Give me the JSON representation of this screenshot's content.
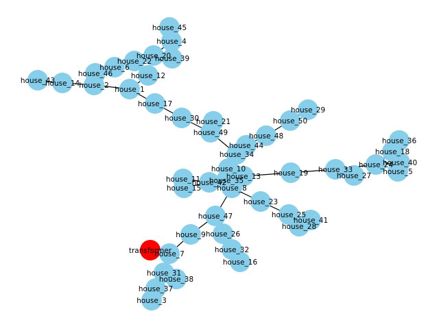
{
  "colors": {
    "node": "#87CEEB",
    "transformer": "#FF0000",
    "edge": "#000000",
    "background": "#FFFFFF"
  },
  "nodes": [
    {
      "id": "house_45",
      "label": "house_45"
    },
    {
      "id": "house_4",
      "label": "house_4"
    },
    {
      "id": "house_20",
      "label": "house_20"
    },
    {
      "id": "house_39",
      "label": "house_39"
    },
    {
      "id": "house_22",
      "label": "house_22"
    },
    {
      "id": "house_6",
      "label": "house_6"
    },
    {
      "id": "house_46",
      "label": "house_46"
    },
    {
      "id": "house_12",
      "label": "house_12"
    },
    {
      "id": "house_43",
      "label": "house_43"
    },
    {
      "id": "house_14",
      "label": "house_14"
    },
    {
      "id": "house_2",
      "label": "house_2"
    },
    {
      "id": "house_1",
      "label": "house_1"
    },
    {
      "id": "house_17",
      "label": "house_17"
    },
    {
      "id": "house_30",
      "label": "house_30"
    },
    {
      "id": "house_21",
      "label": "house_21"
    },
    {
      "id": "house_49",
      "label": "house_49"
    },
    {
      "id": "house_29",
      "label": "house_29"
    },
    {
      "id": "house_50",
      "label": "house_50"
    },
    {
      "id": "house_48",
      "label": "house_48"
    },
    {
      "id": "house_44",
      "label": "house_44"
    },
    {
      "id": "house_34",
      "label": "house_34"
    },
    {
      "id": "house_36",
      "label": "house_36"
    },
    {
      "id": "house_18",
      "label": "house_18"
    },
    {
      "id": "house_24",
      "label": "house_24"
    },
    {
      "id": "house_40",
      "label": "house_40"
    },
    {
      "id": "house_5",
      "label": "house_5"
    },
    {
      "id": "house_33",
      "label": "house_33"
    },
    {
      "id": "house_27",
      "label": "house_27"
    },
    {
      "id": "house_10",
      "label": "house_10"
    },
    {
      "id": "house_13",
      "label": "house_13"
    },
    {
      "id": "house_19",
      "label": "house_19"
    },
    {
      "id": "house_11",
      "label": "house_11"
    },
    {
      "id": "house_42",
      "label": "house_42"
    },
    {
      "id": "house_35",
      "label": "house_35"
    },
    {
      "id": "house_15",
      "label": "house_15"
    },
    {
      "id": "house_8",
      "label": "house_8"
    },
    {
      "id": "house_23",
      "label": "house_23"
    },
    {
      "id": "house_25",
      "label": "house_25"
    },
    {
      "id": "house_41",
      "label": "house_41"
    },
    {
      "id": "house_28",
      "label": "house_28"
    },
    {
      "id": "house_47",
      "label": "house_47"
    },
    {
      "id": "house_9",
      "label": "house_9"
    },
    {
      "id": "house_26",
      "label": "house_26"
    },
    {
      "id": "transformer",
      "label": "transformer",
      "type": "transformer"
    },
    {
      "id": "house_7",
      "label": "house_7"
    },
    {
      "id": "house_32",
      "label": "house_32"
    },
    {
      "id": "house_16",
      "label": "house_16"
    },
    {
      "id": "house_31",
      "label": "house_31"
    },
    {
      "id": "house_38",
      "label": "house_38"
    },
    {
      "id": "house_37",
      "label": "house_37"
    },
    {
      "id": "house_3",
      "label": "house_3"
    }
  ],
  "edges": [
    [
      "house_45",
      "house_4"
    ],
    [
      "house_4",
      "house_20"
    ],
    [
      "house_20",
      "house_39"
    ],
    [
      "house_20",
      "house_22"
    ],
    [
      "house_22",
      "house_6"
    ],
    [
      "house_6",
      "house_46"
    ],
    [
      "house_22",
      "house_12"
    ],
    [
      "house_12",
      "house_1"
    ],
    [
      "house_43",
      "house_14"
    ],
    [
      "house_14",
      "house_2"
    ],
    [
      "house_46",
      "house_2"
    ],
    [
      "house_2",
      "house_1"
    ],
    [
      "house_1",
      "house_17"
    ],
    [
      "house_17",
      "house_30"
    ],
    [
      "house_30",
      "house_49"
    ],
    [
      "house_21",
      "house_49"
    ],
    [
      "house_49",
      "house_34"
    ],
    [
      "house_29",
      "house_50"
    ],
    [
      "house_50",
      "house_48"
    ],
    [
      "house_48",
      "house_44"
    ],
    [
      "house_44",
      "house_34"
    ],
    [
      "house_34",
      "house_10"
    ],
    [
      "house_10",
      "house_13"
    ],
    [
      "house_13",
      "house_19"
    ],
    [
      "house_19",
      "house_33"
    ],
    [
      "house_33",
      "house_27"
    ],
    [
      "house_33",
      "house_24"
    ],
    [
      "house_24",
      "house_18"
    ],
    [
      "house_18",
      "house_36"
    ],
    [
      "house_24",
      "house_40"
    ],
    [
      "house_40",
      "house_5"
    ],
    [
      "house_11",
      "house_42"
    ],
    [
      "house_15",
      "house_42"
    ],
    [
      "house_42",
      "house_35"
    ],
    [
      "house_35",
      "house_13"
    ],
    [
      "house_35",
      "house_8"
    ],
    [
      "house_8",
      "house_23"
    ],
    [
      "house_23",
      "house_25"
    ],
    [
      "house_25",
      "house_41"
    ],
    [
      "house_25",
      "house_28"
    ],
    [
      "house_8",
      "house_47"
    ],
    [
      "house_47",
      "house_26"
    ],
    [
      "house_26",
      "house_32"
    ],
    [
      "house_32",
      "house_16"
    ],
    [
      "house_47",
      "house_9"
    ],
    [
      "house_9",
      "house_7"
    ],
    [
      "transformer",
      "house_7"
    ],
    [
      "house_7",
      "house_31"
    ],
    [
      "house_31",
      "house_38"
    ],
    [
      "house_31",
      "house_37"
    ],
    [
      "house_37",
      "house_3"
    ]
  ]
}
